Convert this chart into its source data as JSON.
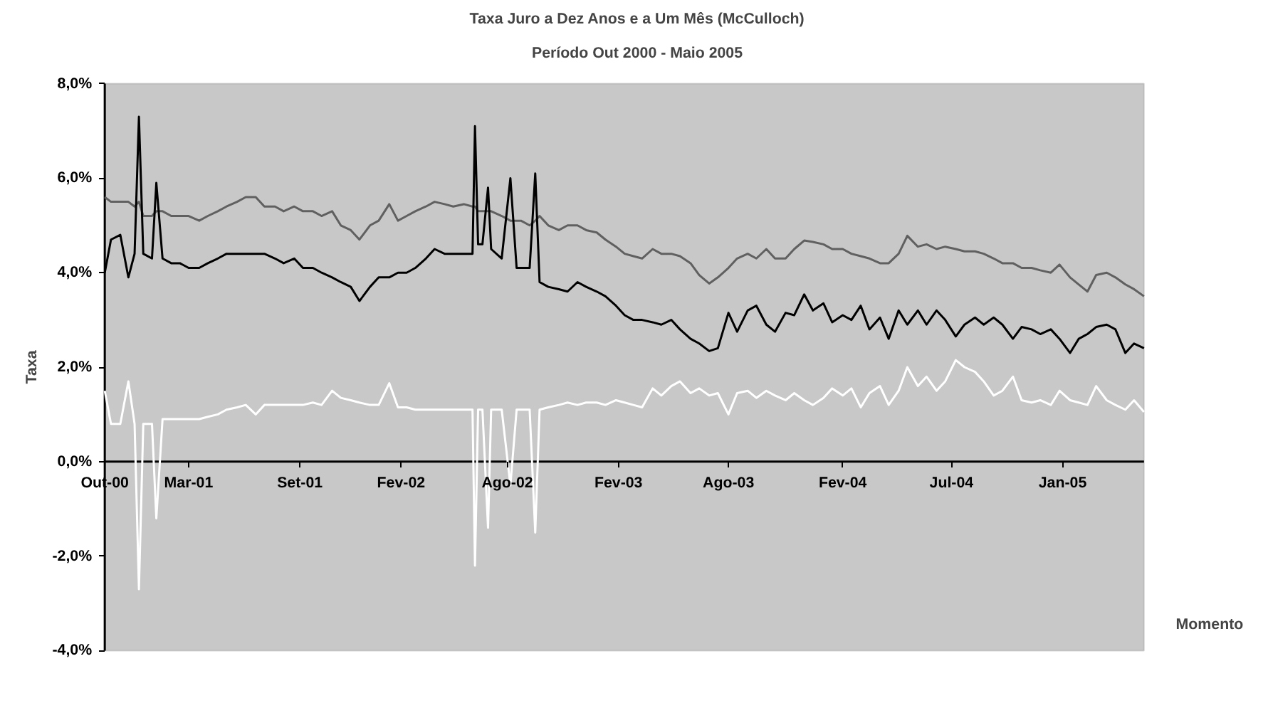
{
  "chart_data": {
    "type": "line",
    "title": "Taxa Juro a Dez Anos e a Um Mês (McCulloch)",
    "subtitle": "Período Out 2000 - Maio 2005",
    "xlabel": "Momento",
    "ylabel": "Taxa",
    "x": [
      "2000-10-31",
      "2000-11-10",
      "2000-11-25",
      "2000-12-08",
      "2000-12-18",
      "2000-12-25",
      "2001-01-01",
      "2001-01-15",
      "2001-01-22",
      "2001-02-01",
      "2001-02-15",
      "2001-03-01",
      "2001-03-15",
      "2001-04-01",
      "2001-04-15",
      "2001-05-01",
      "2001-05-15",
      "2001-06-01",
      "2001-06-15",
      "2001-07-01",
      "2001-07-15",
      "2001-08-01",
      "2001-08-15",
      "2001-09-01",
      "2001-09-15",
      "2001-10-01",
      "2001-10-15",
      "2001-11-01",
      "2001-11-15",
      "2001-12-01",
      "2001-12-15",
      "2002-01-01",
      "2002-01-15",
      "2002-02-01",
      "2002-02-15",
      "2002-03-01",
      "2002-03-15",
      "2002-04-01",
      "2002-04-15",
      "2002-05-01",
      "2002-05-15",
      "2002-06-01",
      "2002-06-15",
      "2002-06-19",
      "2002-06-24",
      "2002-07-01",
      "2002-07-10",
      "2002-07-15",
      "2002-08-01",
      "2002-08-15",
      "2002-08-25",
      "2002-09-01",
      "2002-09-15",
      "2002-09-24",
      "2002-10-01",
      "2002-10-15",
      "2002-11-01",
      "2002-11-15",
      "2002-12-01",
      "2002-12-15",
      "2003-01-01",
      "2003-01-15",
      "2003-02-01",
      "2003-02-15",
      "2003-03-01",
      "2003-03-15",
      "2003-04-01",
      "2003-04-15",
      "2003-05-01",
      "2003-05-15",
      "2003-06-01",
      "2003-06-15",
      "2003-07-01",
      "2003-07-15",
      "2003-08-01",
      "2003-08-15",
      "2003-09-01",
      "2003-09-15",
      "2003-10-01",
      "2003-10-15",
      "2003-11-01",
      "2003-11-15",
      "2003-12-01",
      "2003-12-15",
      "2004-01-01",
      "2004-01-15",
      "2004-02-01",
      "2004-02-15",
      "2004-03-01",
      "2004-03-15",
      "2004-04-01",
      "2004-04-15",
      "2004-05-01",
      "2004-05-15",
      "2004-06-01",
      "2004-06-15",
      "2004-07-01",
      "2004-07-15",
      "2004-08-01",
      "2004-08-15",
      "2004-09-01",
      "2004-09-15",
      "2004-10-01",
      "2004-10-15",
      "2004-11-01",
      "2004-11-15",
      "2004-12-01",
      "2004-12-15",
      "2005-01-01",
      "2005-01-15",
      "2005-02-01",
      "2005-02-15",
      "2005-03-01",
      "2005-03-15",
      "2005-04-01",
      "2005-04-15",
      "2005-05-01",
      "2005-05-15",
      "2005-05-31"
    ],
    "series": [
      {
        "type": "line",
        "color": "#606060",
        "values": [
          5.6,
          5.5,
          5.5,
          5.5,
          5.4,
          5.5,
          5.2,
          5.2,
          5.3,
          5.3,
          5.2,
          5.2,
          5.2,
          5.1,
          5.2,
          5.3,
          5.4,
          5.5,
          5.6,
          5.6,
          5.4,
          5.4,
          5.3,
          5.4,
          5.3,
          5.3,
          5.2,
          5.3,
          5.0,
          4.9,
          4.7,
          5.0,
          5.1,
          5.45,
          5.1,
          5.2,
          5.3,
          5.4,
          5.5,
          5.45,
          5.4,
          5.45,
          5.4,
          5.4,
          5.3,
          5.3,
          5.3,
          5.3,
          5.2,
          5.1,
          5.1,
          5.1,
          5.0,
          5.1,
          5.2,
          5.0,
          4.9,
          5.0,
          5.0,
          4.9,
          4.85,
          4.7,
          4.55,
          4.4,
          4.35,
          4.3,
          4.5,
          4.4,
          4.4,
          4.35,
          4.2,
          3.95,
          3.77,
          3.9,
          4.1,
          4.3,
          4.4,
          4.3,
          4.5,
          4.3,
          4.3,
          4.5,
          4.68,
          4.65,
          4.6,
          4.5,
          4.5,
          4.4,
          4.35,
          4.3,
          4.2,
          4.2,
          4.4,
          4.78,
          4.55,
          4.6,
          4.5,
          4.55,
          4.5,
          4.45,
          4.45,
          4.4,
          4.3,
          4.2,
          4.2,
          4.1,
          4.1,
          4.05,
          4.0,
          4.17,
          3.9,
          3.75,
          3.6,
          3.95,
          4.0,
          3.9,
          3.75,
          3.65,
          3.5
        ]
      },
      {
        "type": "line",
        "color": "#000000",
        "values": [
          4.0,
          4.7,
          4.8,
          3.9,
          4.4,
          7.3,
          4.4,
          4.3,
          5.9,
          4.3,
          4.2,
          4.2,
          4.1,
          4.1,
          4.2,
          4.3,
          4.4,
          4.4,
          4.4,
          4.4,
          4.4,
          4.3,
          4.2,
          4.3,
          4.1,
          4.1,
          4.0,
          3.9,
          3.8,
          3.7,
          3.4,
          3.7,
          3.9,
          3.9,
          4.0,
          4.0,
          4.1,
          4.3,
          4.5,
          4.4,
          4.4,
          4.4,
          4.4,
          7.1,
          4.6,
          4.6,
          5.8,
          4.5,
          4.3,
          6.0,
          4.1,
          4.1,
          4.1,
          6.1,
          3.8,
          3.7,
          3.65,
          3.6,
          3.8,
          3.7,
          3.6,
          3.5,
          3.3,
          3.1,
          3.0,
          3.0,
          2.95,
          2.9,
          3.0,
          2.8,
          2.6,
          2.5,
          2.34,
          2.4,
          3.15,
          2.75,
          3.2,
          3.3,
          2.9,
          2.75,
          3.15,
          3.1,
          3.54,
          3.2,
          3.35,
          2.95,
          3.1,
          3.0,
          3.3,
          2.8,
          3.05,
          2.6,
          3.2,
          2.9,
          3.2,
          2.9,
          3.2,
          3.0,
          2.65,
          2.9,
          3.05,
          2.9,
          3.05,
          2.9,
          2.6,
          2.85,
          2.8,
          2.7,
          2.8,
          2.6,
          2.3,
          2.6,
          2.7,
          2.85,
          2.9,
          2.8,
          2.3,
          2.5,
          2.4
        ]
      },
      {
        "type": "line",
        "color": "#ffffff",
        "values": [
          1.5,
          0.8,
          0.8,
          1.7,
          0.8,
          -2.7,
          0.8,
          0.8,
          -1.2,
          0.9,
          0.9,
          0.9,
          0.9,
          0.9,
          0.95,
          1.0,
          1.1,
          1.15,
          1.2,
          1.0,
          1.2,
          1.2,
          1.2,
          1.2,
          1.2,
          1.25,
          1.2,
          1.5,
          1.35,
          1.3,
          1.25,
          1.2,
          1.2,
          1.66,
          1.15,
          1.15,
          1.1,
          1.1,
          1.1,
          1.1,
          1.1,
          1.1,
          1.1,
          -2.2,
          1.1,
          1.1,
          -1.4,
          1.1,
          1.1,
          -0.5,
          1.1,
          1.1,
          1.1,
          -1.5,
          1.1,
          1.15,
          1.2,
          1.25,
          1.2,
          1.25,
          1.25,
          1.2,
          1.3,
          1.25,
          1.2,
          1.15,
          1.55,
          1.4,
          1.6,
          1.7,
          1.45,
          1.55,
          1.4,
          1.45,
          1.0,
          1.45,
          1.5,
          1.35,
          1.5,
          1.4,
          1.3,
          1.45,
          1.3,
          1.2,
          1.35,
          1.55,
          1.4,
          1.55,
          1.15,
          1.45,
          1.6,
          1.2,
          1.5,
          2.0,
          1.6,
          1.8,
          1.5,
          1.7,
          2.15,
          2.0,
          1.9,
          1.7,
          1.4,
          1.5,
          1.8,
          1.3,
          1.25,
          1.3,
          1.2,
          1.5,
          1.3,
          1.25,
          1.2,
          1.6,
          1.3,
          1.2,
          1.1,
          1.3,
          1.05
        ]
      }
    ],
    "xlim": [
      "2000-10-31",
      "2005-05-31"
    ],
    "xticks": [
      {
        "value": "2000-10-31",
        "label": "Out-00"
      },
      {
        "value": "2001-03-15",
        "label": "Mar-01"
      },
      {
        "value": "2001-09-10",
        "label": "Set-01"
      },
      {
        "value": "2002-02-20",
        "label": "Fev-02"
      },
      {
        "value": "2002-08-10",
        "label": "Ago-02"
      },
      {
        "value": "2003-02-05",
        "label": "Fev-03"
      },
      {
        "value": "2003-08-01",
        "label": "Ago-03"
      },
      {
        "value": "2004-02-01",
        "label": "Fev-04"
      },
      {
        "value": "2004-07-25",
        "label": "Jul-04"
      },
      {
        "value": "2005-01-20",
        "label": "Jan-05"
      }
    ],
    "ylim": [
      -4,
      8
    ],
    "yticks": [
      {
        "value": -4,
        "label": "-4,0%"
      },
      {
        "value": -2,
        "label": "-2,0%"
      },
      {
        "value": 0,
        "label": "0,0%"
      },
      {
        "value": 2,
        "label": "2,0%"
      },
      {
        "value": 4,
        "label": "4,0%"
      },
      {
        "value": 6,
        "label": "6,0%"
      },
      {
        "value": 8,
        "label": "8,0%"
      }
    ]
  }
}
